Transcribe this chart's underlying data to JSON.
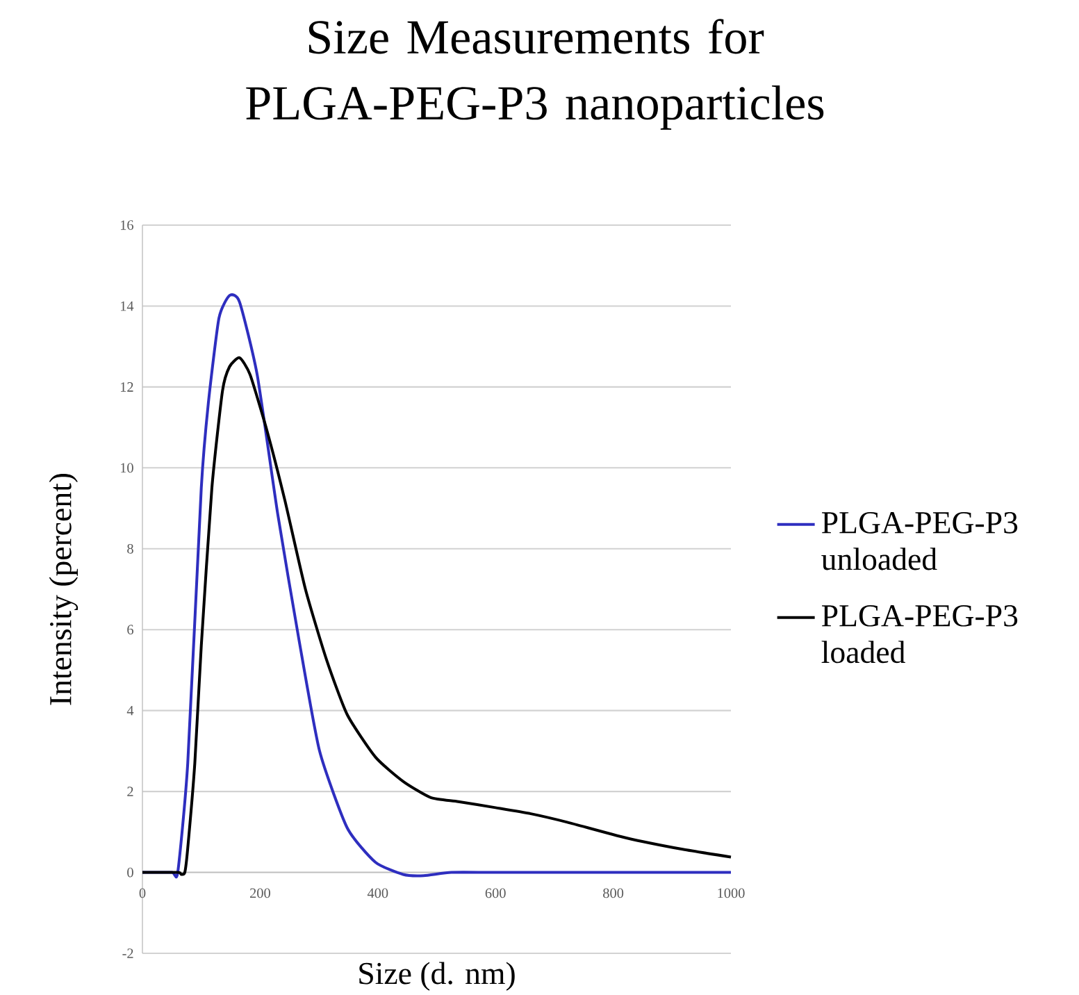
{
  "chart_data": {
    "type": "line",
    "title": "Size Measurements for PLGA-PEG-P3 nanoparticles",
    "xlabel": "Size (d. nm)",
    "ylabel": "Intensity (percent)",
    "xlim": [
      0,
      1000
    ],
    "xticks": [
      0,
      200,
      400,
      600,
      800,
      1000
    ],
    "ylim": [
      -2,
      16
    ],
    "yticks": [
      -2,
      0,
      2,
      4,
      6,
      8,
      10,
      12,
      14,
      16
    ],
    "grid": "y",
    "legend": "right",
    "series": [
      {
        "name": "PLGA-PEG-P3 unloaded",
        "color": "#2e2ebf",
        "x": [
          0,
          50,
          60,
          77,
          100,
          112,
          130,
          148,
          165,
          195,
          230,
          266,
          301,
          348,
          396,
          443,
          478,
          525,
          600,
          800,
          1000
        ],
        "values": [
          0,
          0,
          0,
          2.7,
          9.5,
          11.6,
          13.7,
          14.26,
          14.1,
          12.3,
          8.85,
          5.75,
          3.0,
          1.1,
          0.25,
          -0.05,
          -0.08,
          0,
          0,
          0,
          0
        ]
      },
      {
        "name": "PLGA-PEG-P3 loaded",
        "color": "#000000",
        "x": [
          0,
          60,
          66,
          72,
          77,
          89,
          100,
          118,
          136,
          148,
          165,
          183,
          212,
          242,
          277,
          313,
          348,
          396,
          443,
          490,
          537,
          600,
          660,
          722,
          820,
          918,
          1000
        ],
        "values": [
          0,
          0,
          -0.05,
          0,
          0.6,
          2.7,
          5.6,
          9.5,
          11.9,
          12.5,
          12.72,
          12.3,
          10.9,
          9.2,
          7.0,
          5.25,
          3.9,
          2.85,
          2.25,
          1.85,
          1.75,
          1.6,
          1.45,
          1.24,
          0.86,
          0.57,
          0.38
        ]
      }
    ]
  }
}
